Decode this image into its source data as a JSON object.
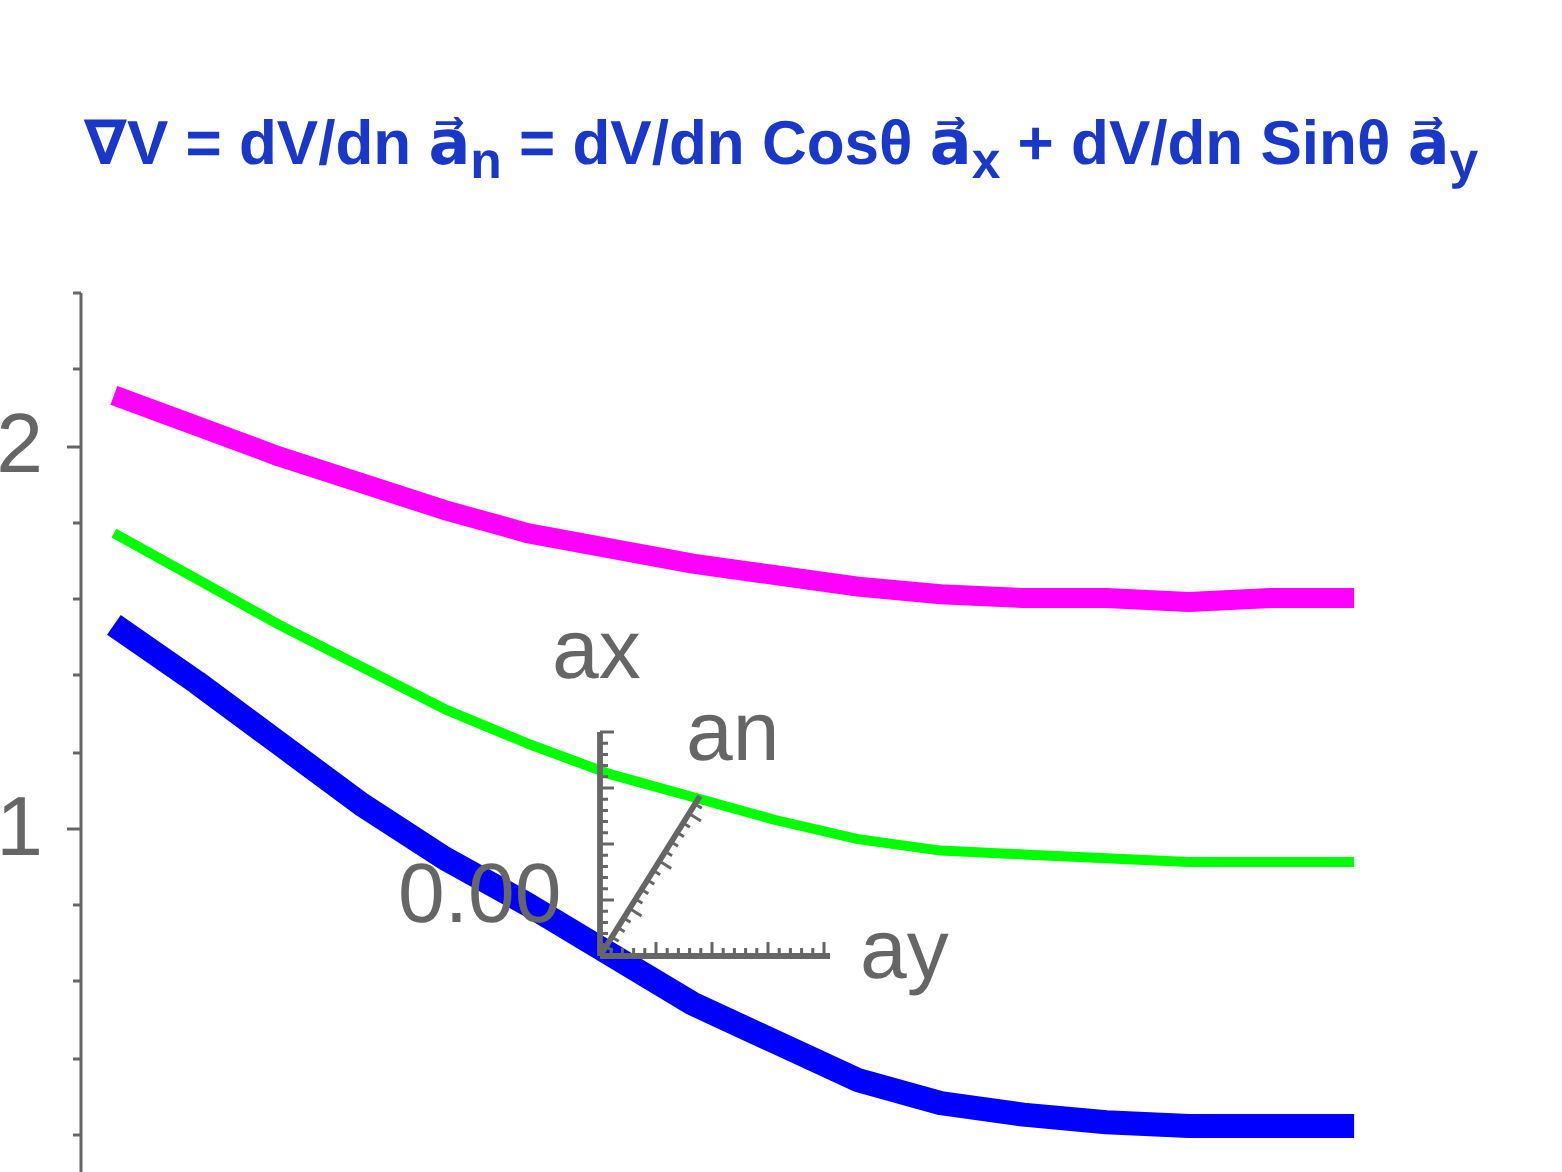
{
  "chart_data": {
    "type": "line",
    "title": "∇V = dV/dn a⃗$_{n}$ = dV/dn Cosθ a⃗$_{x}$ + dV/dn Sinθ a⃗$_{y}$",
    "categories": [
      null,
      null,
      null,
      null,
      null,
      null,
      null,
      null,
      null,
      null,
      null,
      null,
      null,
      null,
      null,
      null
    ],
    "series": [
      {
        "color": "#ff00ff",
        "values": [
          2.13,
          2.05,
          1.97,
          1.9,
          1.83,
          1.77,
          1.73,
          1.69,
          1.66,
          1.63,
          1.61,
          1.6,
          1.6,
          1.59,
          1.6,
          1.6
        ]
      },
      {
        "color": "#00ff00",
        "values": [
          1.77,
          1.65,
          1.53,
          1.42,
          1.31,
          1.22,
          1.14,
          1.08,
          1.02,
          0.97,
          0.94,
          0.93,
          0.92,
          0.91,
          0.91,
          0.91
        ]
      },
      {
        "color": "#0000ff",
        "values": [
          1.53,
          1.38,
          1.22,
          1.06,
          0.92,
          0.8,
          0.67,
          0.54,
          0.44,
          0.34,
          0.28,
          0.25,
          0.23,
          0.22,
          0.22,
          0.22
        ]
      }
    ],
    "ylim": [
      0.1,
      2.4
    ],
    "yticks": [
      {
        "value": 0.2,
        "label": null
      },
      {
        "value": 0.4,
        "label": null
      },
      {
        "value": 0.6,
        "label": null
      },
      {
        "value": 0.8,
        "label": null
      },
      1,
      {
        "value": 1.2,
        "label": null
      },
      {
        "value": 1.4,
        "label": null
      },
      {
        "value": 1.6,
        "label": null
      },
      {
        "value": 1.8,
        "label": null
      },
      2,
      {
        "value": 2.2,
        "label": null
      },
      {
        "value": 2.4,
        "label": null
      }
    ],
    "annotations": [
      "ax",
      "an",
      "0.00",
      "ay"
    ]
  }
}
